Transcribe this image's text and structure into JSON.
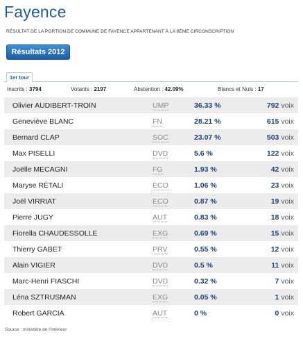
{
  "page": {
    "title": "Fayence",
    "subtitle": "Résultat de la portion de commune de Fayence appartenant à la 8ème circonscription",
    "results_button": "Résultats 2012",
    "tab": "1er tour",
    "source": "Source : ministère de l'intérieur"
  },
  "stats": {
    "inscrits_label": "Inscrits :",
    "inscrits": "3794",
    "votants_label": "Votants :",
    "votants": "2197",
    "abstention_label": "Abstention :",
    "abstention": "42.09%",
    "blancs_label": "Blancs et Nuls :",
    "blancs": "17"
  },
  "votes_suffix": "voix",
  "candidates": [
    {
      "name": "Olivier AUDIBERT-TROIN",
      "party": "UMP",
      "pct": "36.33 %",
      "votes": "792"
    },
    {
      "name": "Geneviève BLANC",
      "party": "FN",
      "pct": "28.21 %",
      "votes": "615"
    },
    {
      "name": "Bernard CLAP",
      "party": "SOC",
      "pct": "23.07 %",
      "votes": "503"
    },
    {
      "name": "Max PISELLI",
      "party": "DVD",
      "pct": "5.6 %",
      "votes": "122"
    },
    {
      "name": "Joëlle MECAGNI",
      "party": "FG",
      "pct": "1.93 %",
      "votes": "42"
    },
    {
      "name": "Maryse RÉTALI",
      "party": "ECO",
      "pct": "1.06 %",
      "votes": "23"
    },
    {
      "name": "Joël VIRRIAT",
      "party": "ECO",
      "pct": "0.87 %",
      "votes": "19"
    },
    {
      "name": "Pierre JUGY",
      "party": "AUT",
      "pct": "0.83 %",
      "votes": "18"
    },
    {
      "name": "Fiorella CHAUDESSOLLE",
      "party": "EXG",
      "pct": "0.69 %",
      "votes": "15"
    },
    {
      "name": "Thierry GABET",
      "party": "PRV",
      "pct": "0.55 %",
      "votes": "12"
    },
    {
      "name": "Alain VIGIER",
      "party": "DVD",
      "pct": "0.5 %",
      "votes": "11"
    },
    {
      "name": "Marc-Henri FIASCHI",
      "party": "DVD",
      "pct": "0.32 %",
      "votes": "7"
    },
    {
      "name": "Léna SZTRUSMAN",
      "party": "EXG",
      "pct": "0.05 %",
      "votes": "1"
    },
    {
      "name": "Robert GARCIA",
      "party": "AUT",
      "pct": "0 %",
      "votes": "0"
    }
  ]
}
